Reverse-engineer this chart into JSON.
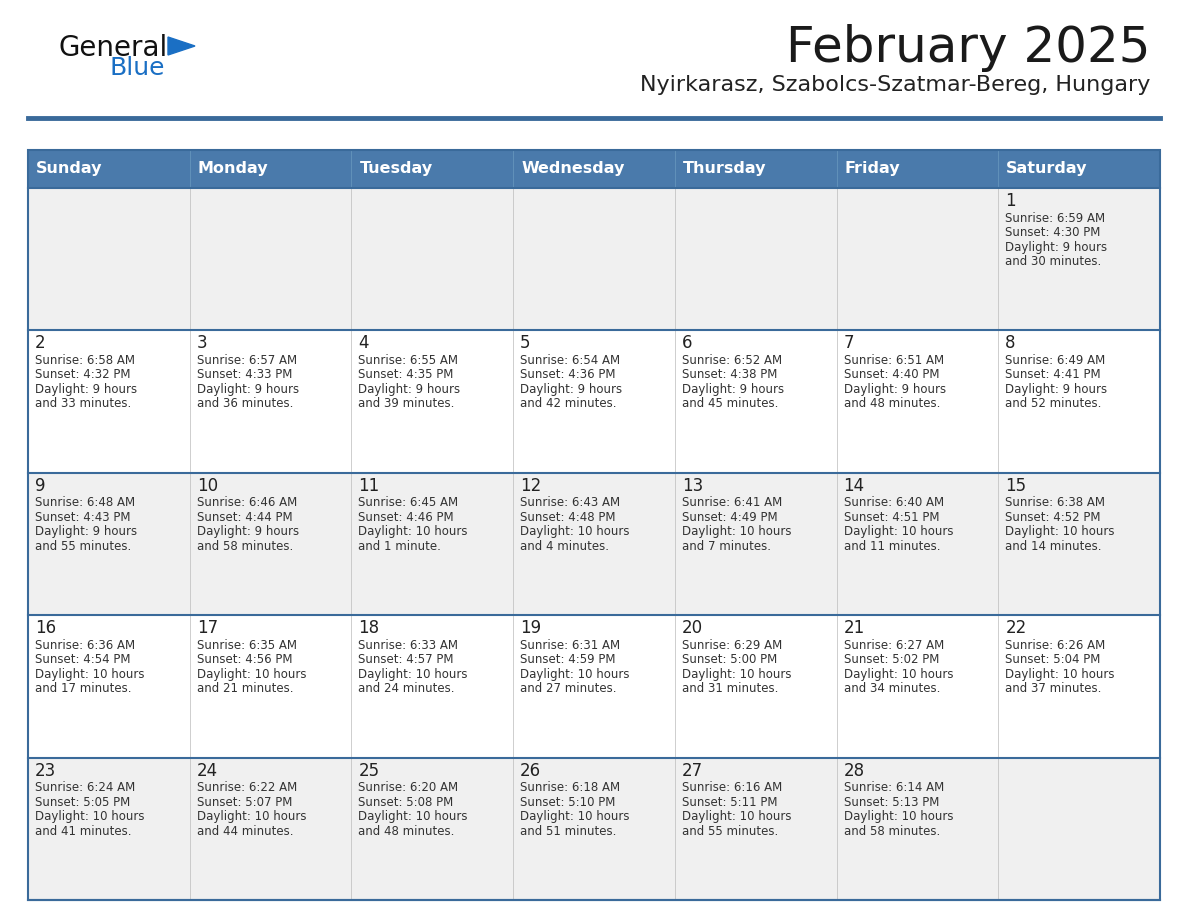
{
  "title": "February 2025",
  "subtitle": "Nyirkarasz, Szabolcs-Szatmar-Bereg, Hungary",
  "days_of_week": [
    "Sunday",
    "Monday",
    "Tuesday",
    "Wednesday",
    "Thursday",
    "Friday",
    "Saturday"
  ],
  "header_bg": "#4a7aab",
  "header_text": "#ffffff",
  "row_bg_odd": "#f0f0f0",
  "row_bg_even": "#ffffff",
  "cell_border_color": "#3a6a9a",
  "day_num_color": "#222222",
  "info_color": "#333333",
  "title_color": "#1a1a1a",
  "subtitle_color": "#222222",
  "logo_general_color": "#111111",
  "logo_blue_color": "#1a6fc4",
  "separator_color": "#3a6a9a",
  "calendar_data": [
    [
      null,
      null,
      null,
      null,
      null,
      null,
      {
        "day": "1",
        "sunrise": "6:59 AM",
        "sunset": "4:30 PM",
        "daylight1": "9 hours",
        "daylight2": "and 30 minutes."
      }
    ],
    [
      {
        "day": "2",
        "sunrise": "6:58 AM",
        "sunset": "4:32 PM",
        "daylight1": "9 hours",
        "daylight2": "and 33 minutes."
      },
      {
        "day": "3",
        "sunrise": "6:57 AM",
        "sunset": "4:33 PM",
        "daylight1": "9 hours",
        "daylight2": "and 36 minutes."
      },
      {
        "day": "4",
        "sunrise": "6:55 AM",
        "sunset": "4:35 PM",
        "daylight1": "9 hours",
        "daylight2": "and 39 minutes."
      },
      {
        "day": "5",
        "sunrise": "6:54 AM",
        "sunset": "4:36 PM",
        "daylight1": "9 hours",
        "daylight2": "and 42 minutes."
      },
      {
        "day": "6",
        "sunrise": "6:52 AM",
        "sunset": "4:38 PM",
        "daylight1": "9 hours",
        "daylight2": "and 45 minutes."
      },
      {
        "day": "7",
        "sunrise": "6:51 AM",
        "sunset": "4:40 PM",
        "daylight1": "9 hours",
        "daylight2": "and 48 minutes."
      },
      {
        "day": "8",
        "sunrise": "6:49 AM",
        "sunset": "4:41 PM",
        "daylight1": "9 hours",
        "daylight2": "and 52 minutes."
      }
    ],
    [
      {
        "day": "9",
        "sunrise": "6:48 AM",
        "sunset": "4:43 PM",
        "daylight1": "9 hours",
        "daylight2": "and 55 minutes."
      },
      {
        "day": "10",
        "sunrise": "6:46 AM",
        "sunset": "4:44 PM",
        "daylight1": "9 hours",
        "daylight2": "and 58 minutes."
      },
      {
        "day": "11",
        "sunrise": "6:45 AM",
        "sunset": "4:46 PM",
        "daylight1": "10 hours",
        "daylight2": "and 1 minute."
      },
      {
        "day": "12",
        "sunrise": "6:43 AM",
        "sunset": "4:48 PM",
        "daylight1": "10 hours",
        "daylight2": "and 4 minutes."
      },
      {
        "day": "13",
        "sunrise": "6:41 AM",
        "sunset": "4:49 PM",
        "daylight1": "10 hours",
        "daylight2": "and 7 minutes."
      },
      {
        "day": "14",
        "sunrise": "6:40 AM",
        "sunset": "4:51 PM",
        "daylight1": "10 hours",
        "daylight2": "and 11 minutes."
      },
      {
        "day": "15",
        "sunrise": "6:38 AM",
        "sunset": "4:52 PM",
        "daylight1": "10 hours",
        "daylight2": "and 14 minutes."
      }
    ],
    [
      {
        "day": "16",
        "sunrise": "6:36 AM",
        "sunset": "4:54 PM",
        "daylight1": "10 hours",
        "daylight2": "and 17 minutes."
      },
      {
        "day": "17",
        "sunrise": "6:35 AM",
        "sunset": "4:56 PM",
        "daylight1": "10 hours",
        "daylight2": "and 21 minutes."
      },
      {
        "day": "18",
        "sunrise": "6:33 AM",
        "sunset": "4:57 PM",
        "daylight1": "10 hours",
        "daylight2": "and 24 minutes."
      },
      {
        "day": "19",
        "sunrise": "6:31 AM",
        "sunset": "4:59 PM",
        "daylight1": "10 hours",
        "daylight2": "and 27 minutes."
      },
      {
        "day": "20",
        "sunrise": "6:29 AM",
        "sunset": "5:00 PM",
        "daylight1": "10 hours",
        "daylight2": "and 31 minutes."
      },
      {
        "day": "21",
        "sunrise": "6:27 AM",
        "sunset": "5:02 PM",
        "daylight1": "10 hours",
        "daylight2": "and 34 minutes."
      },
      {
        "day": "22",
        "sunrise": "6:26 AM",
        "sunset": "5:04 PM",
        "daylight1": "10 hours",
        "daylight2": "and 37 minutes."
      }
    ],
    [
      {
        "day": "23",
        "sunrise": "6:24 AM",
        "sunset": "5:05 PM",
        "daylight1": "10 hours",
        "daylight2": "and 41 minutes."
      },
      {
        "day": "24",
        "sunrise": "6:22 AM",
        "sunset": "5:07 PM",
        "daylight1": "10 hours",
        "daylight2": "and 44 minutes."
      },
      {
        "day": "25",
        "sunrise": "6:20 AM",
        "sunset": "5:08 PM",
        "daylight1": "10 hours",
        "daylight2": "and 48 minutes."
      },
      {
        "day": "26",
        "sunrise": "6:18 AM",
        "sunset": "5:10 PM",
        "daylight1": "10 hours",
        "daylight2": "and 51 minutes."
      },
      {
        "day": "27",
        "sunrise": "6:16 AM",
        "sunset": "5:11 PM",
        "daylight1": "10 hours",
        "daylight2": "and 55 minutes."
      },
      {
        "day": "28",
        "sunrise": "6:14 AM",
        "sunset": "5:13 PM",
        "daylight1": "10 hours",
        "daylight2": "and 58 minutes."
      },
      null
    ]
  ]
}
